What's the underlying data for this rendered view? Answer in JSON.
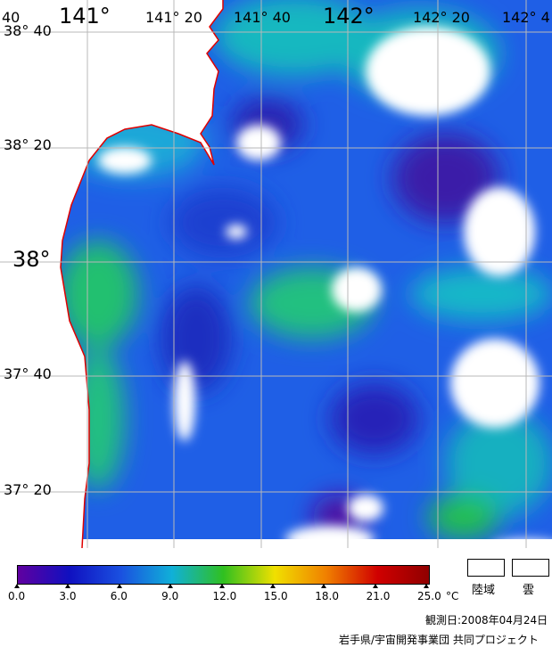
{
  "map": {
    "lon_labels": [
      {
        "text": "40",
        "size": "small"
      },
      {
        "text": "141°",
        "size": "big"
      },
      {
        "text": "141° 20",
        "size": "small"
      },
      {
        "text": "141° 40",
        "size": "small"
      },
      {
        "text": "142°",
        "size": "big"
      },
      {
        "text": "142° 20",
        "size": "small"
      },
      {
        "text": "142° 4",
        "size": "small"
      }
    ],
    "lat_labels": [
      {
        "text": "38° 40",
        "size": "small"
      },
      {
        "text": "38° 20",
        "size": "small"
      },
      {
        "text": "38°",
        "size": "big"
      },
      {
        "text": "37° 40",
        "size": "small"
      },
      {
        "text": "37° 20",
        "size": "small"
      }
    ],
    "coastline_color": "#e00000",
    "grid_color": "#b8b8b8"
  },
  "legend": {
    "ticks": [
      "0.0",
      "3.0",
      "6.0",
      "9.0",
      "12.0",
      "15.0",
      "18.0",
      "21.0",
      "25.0"
    ],
    "unit": "°C",
    "land_label": "陸域",
    "cloud_label": "雲",
    "colors": [
      "#6000a0",
      "#1010c0",
      "#1a50e0",
      "#10b0d8",
      "#30c020",
      "#f0e000",
      "#f08000",
      "#d00000",
      "#900000"
    ]
  },
  "credits": {
    "date": "観測日:2008年04月24日",
    "org": "岩手県/宇宙開発事業団 共同プロジェクト"
  }
}
